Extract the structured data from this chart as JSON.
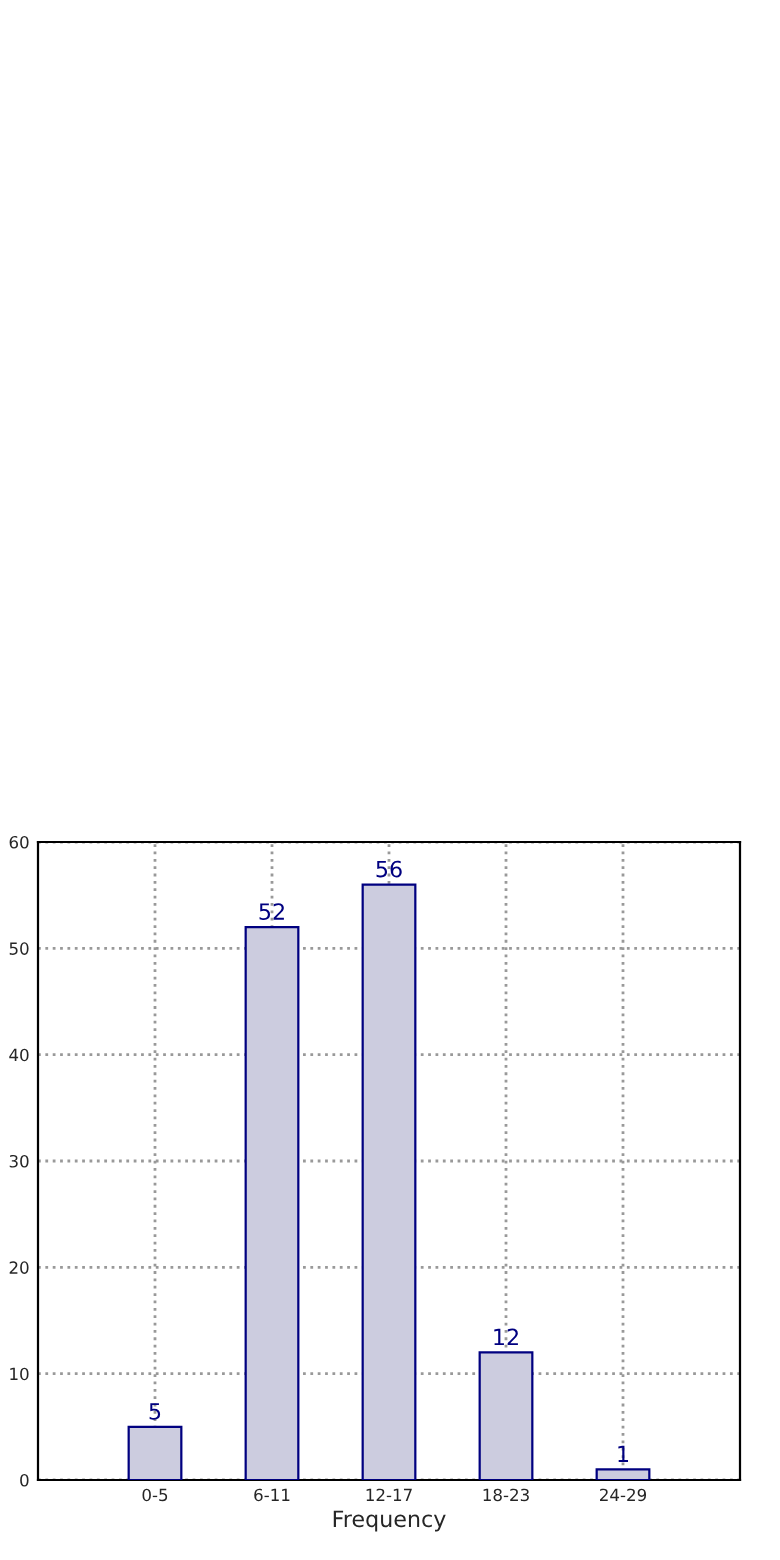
{
  "chart_data": {
    "type": "bar",
    "xlabel": "Frequency",
    "categories": [
      "0-5",
      "6-11",
      "12-17",
      "18-23",
      "24-29"
    ],
    "values": [
      5,
      52,
      56,
      12,
      1
    ],
    "color": "#ccccdf",
    "ylim": [
      0,
      60
    ],
    "yticks": [
      0,
      10,
      20,
      30,
      40,
      50,
      60
    ],
    "grid": true,
    "data_labels": true
  }
}
